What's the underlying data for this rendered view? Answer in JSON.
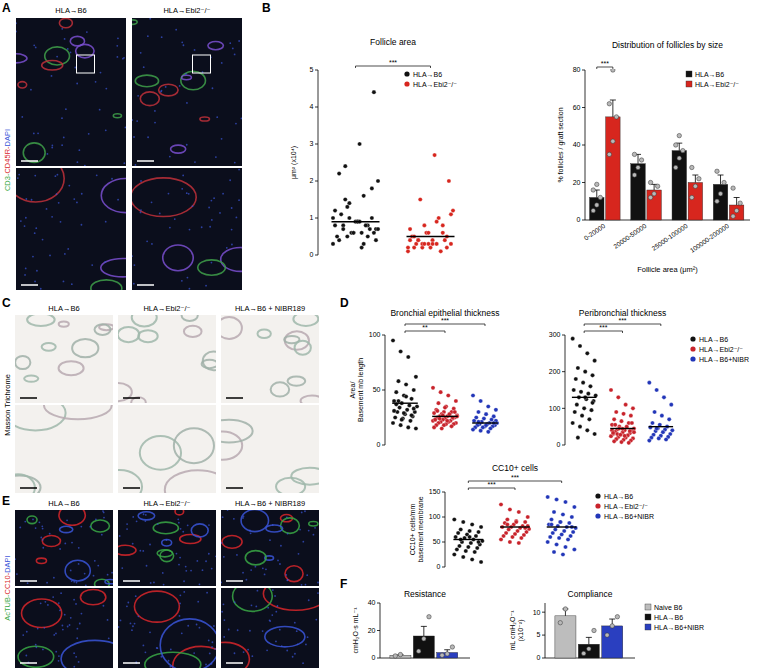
{
  "panel_labels": [
    "A",
    "B",
    "C",
    "D",
    "E",
    "F"
  ],
  "image_panels": [
    {
      "stain": [
        "CD3-",
        "CD45R-",
        "DAPI"
      ],
      "colors": [
        "#3aa845",
        "#d8262a",
        "#3a55d8"
      ],
      "columns": [
        "HLA→B6",
        "HLA→Ebi2⁻/⁻"
      ]
    },
    {
      "stain": [
        "Masson Trichrome"
      ],
      "colors": [
        "#000000"
      ],
      "columns": [
        "HLA→B6",
        "HLA→Ebi2⁻/⁻",
        "HLA→B6 + NIBR189"
      ]
    },
    {
      "stain": [
        "AcTUB-",
        "CC10-",
        "DAPI"
      ],
      "colors": [
        "#3aa845",
        "#d8262a",
        "#3a55d8"
      ],
      "columns": [
        "HLA→B6",
        "HLA→Ebi2⁻/⁻",
        "HLA→B6 + NIBR189"
      ]
    }
  ],
  "chart_data": [
    {
      "type": "strip",
      "title": "Follicle area",
      "ylabel": "μm² (x10⁴)",
      "ylim": [
        0,
        5
      ],
      "yticks": [
        0,
        1,
        2,
        3,
        4,
        5
      ],
      "legend": "top-right",
      "series": [
        {
          "name": "HLA→B6",
          "color": "#111111",
          "mean": 0.9,
          "values": [
            0.3,
            0.5,
            0.6,
            0.7,
            0.8,
            0.9,
            1.0,
            0.4,
            0.6,
            0.8,
            1.2,
            1.4,
            1.6,
            2.0,
            2.4,
            3.0,
            4.4,
            1.1,
            0.9,
            0.7,
            0.5,
            0.6,
            0.8,
            1.0,
            1.3,
            0.2,
            0.4,
            0.7,
            0.9,
            1.8,
            2.2,
            0.6,
            0.5,
            0.8,
            1.0,
            0.3,
            0.7,
            1.5,
            0.9,
            0.6
          ]
        },
        {
          "name": "HLA→Ebi2⁻/⁻",
          "color": "#d7261e",
          "mean": 0.5,
          "values": [
            0.1,
            0.2,
            0.3,
            0.3,
            0.4,
            0.4,
            0.5,
            0.2,
            0.3,
            0.6,
            0.7,
            0.8,
            1.0,
            1.2,
            1.5,
            2.7,
            2.0,
            0.3,
            0.2,
            0.4,
            0.5,
            0.6,
            0.1,
            0.2,
            0.3,
            0.9,
            1.1,
            0.4,
            0.3,
            0.2,
            0.5,
            0.6,
            0.8,
            0.4,
            0.3
          ]
        }
      ],
      "annotations": [
        {
          "text": "***",
          "from": 0,
          "to": 1
        }
      ]
    },
    {
      "type": "bar",
      "title": "Distribution of follicles by size",
      "ylabel": "% follicles / graft section",
      "xlabel": "Follicle area (μm²)",
      "categories": [
        "0-20000",
        "20000-50000",
        "25000-100000",
        "100000-200000"
      ],
      "ylim": [
        0,
        80
      ],
      "yticks": [
        0,
        20,
        40,
        60,
        80
      ],
      "legend": "top-right",
      "series": [
        {
          "name": "HLA→B6",
          "color": "#111111",
          "values": [
            12,
            30,
            37,
            19
          ],
          "errors": [
            4,
            5,
            4,
            5
          ],
          "points": [
            [
              5,
              8,
              12,
              16,
              19
            ],
            [
              24,
              28,
              32,
              35
            ],
            [
              28,
              33,
              37,
              40,
              45
            ],
            [
              10,
              14,
              20,
              26
            ]
          ]
        },
        {
          "name": "HLA→Ebi2⁻/⁻",
          "color": "#d7261e",
          "values": [
            55,
            16,
            20,
            8
          ],
          "errors": [
            9,
            3,
            4,
            4
          ],
          "points": [
            [
              35,
              42,
              55,
              62,
              80
            ],
            [
              12,
              14,
              18,
              20
            ],
            [
              12,
              18,
              22,
              28
            ],
            [
              2,
              5,
              9,
              17
            ]
          ]
        }
      ],
      "annotations": [
        {
          "text": "***",
          "category": 0
        }
      ]
    },
    {
      "type": "strip",
      "title": "Bronchial epithelial thickness",
      "ylabel": [
        "Area/",
        "Basement mb length"
      ],
      "ylim": [
        0,
        100
      ],
      "yticks": [
        0,
        50,
        100
      ],
      "series": [
        {
          "name": "HLA→B6",
          "color": "#111111",
          "mean": 38,
          "values": [
            95,
            85,
            80,
            62,
            58,
            55,
            50,
            48,
            45,
            42,
            40,
            38,
            36,
            35,
            34,
            32,
            30,
            30,
            28,
            26,
            25,
            24,
            22,
            20,
            18,
            16,
            15,
            40,
            44,
            33,
            37,
            29,
            27,
            31,
            23
          ]
        },
        {
          "name": "HLA→Ebi2⁻/⁻",
          "color": "#c8232b",
          "mean": 26,
          "values": [
            52,
            48,
            45,
            40,
            38,
            35,
            33,
            32,
            30,
            30,
            29,
            28,
            27,
            27,
            26,
            26,
            25,
            25,
            24,
            24,
            23,
            23,
            22,
            22,
            21,
            21,
            20,
            20,
            19,
            19,
            18,
            18,
            17,
            16,
            15,
            28,
            26,
            24,
            22,
            30,
            31,
            34,
            25,
            23,
            27
          ]
        },
        {
          "name": "HLA→B6+NIBR",
          "color": "#2236b8",
          "mean": 20,
          "values": [
            45,
            40,
            35,
            32,
            30,
            28,
            26,
            25,
            24,
            23,
            22,
            21,
            20,
            20,
            19,
            19,
            18,
            18,
            17,
            17,
            16,
            16,
            15,
            14,
            13,
            12,
            22,
            21,
            18,
            20
          ]
        }
      ],
      "annotations": [
        {
          "text": "**",
          "from": 0,
          "to": 1
        },
        {
          "text": "***",
          "from": 0,
          "to": 2
        }
      ]
    },
    {
      "type": "strip",
      "title": "Peribronchial thickness",
      "ylim": [
        0,
        300
      ],
      "yticks": [
        0,
        100,
        200,
        300
      ],
      "legend": "right",
      "series": [
        {
          "name": "HLA→B6",
          "color": "#111111",
          "mean": 130,
          "values": [
            290,
            270,
            250,
            230,
            210,
            200,
            190,
            180,
            170,
            160,
            150,
            145,
            140,
            135,
            130,
            125,
            120,
            110,
            100,
            95,
            90,
            80,
            70,
            60,
            50,
            40,
            30,
            20,
            130,
            115
          ]
        },
        {
          "name": "HLA→Ebi2⁻/⁻",
          "color": "#c8232b",
          "mean": 45,
          "values": [
            150,
            130,
            110,
            100,
            90,
            85,
            80,
            70,
            65,
            60,
            55,
            50,
            48,
            45,
            42,
            40,
            38,
            36,
            34,
            32,
            30,
            28,
            26,
            24,
            22,
            20,
            18,
            16,
            14,
            12,
            10,
            8,
            6,
            40,
            45,
            50,
            35,
            30,
            25,
            60,
            55,
            44,
            38,
            33,
            28
          ]
        },
        {
          "name": "HLA→B6+NIBR",
          "color": "#2236b8",
          "mean": 50,
          "values": [
            170,
            150,
            130,
            110,
            90,
            80,
            70,
            60,
            55,
            50,
            48,
            45,
            42,
            40,
            38,
            35,
            30,
            28,
            25,
            22,
            20,
            18,
            15,
            12,
            45
          ]
        }
      ],
      "annotations": [
        {
          "text": "***",
          "from": 0,
          "to": 1
        },
        {
          "text": "***",
          "from": 0,
          "to": 2
        }
      ]
    },
    {
      "type": "strip",
      "title": "CC10+ cells",
      "ylabel": [
        "CC10+ cells/mm",
        "basement membrane"
      ],
      "ylim": [
        0,
        150
      ],
      "yticks": [
        0,
        50,
        100,
        150
      ],
      "legend": "right",
      "series": [
        {
          "name": "HLA→B6",
          "color": "#111111",
          "mean": 55,
          "values": [
            95,
            90,
            85,
            80,
            75,
            72,
            70,
            68,
            65,
            62,
            60,
            58,
            55,
            52,
            50,
            48,
            45,
            42,
            40,
            38,
            35,
            32,
            30,
            25,
            20,
            15,
            10,
            55,
            60,
            50
          ]
        },
        {
          "name": "HLA→Ebi2⁻/⁻",
          "color": "#c8232b",
          "mean": 80,
          "values": [
            125,
            115,
            110,
            100,
            95,
            92,
            90,
            88,
            85,
            82,
            80,
            80,
            78,
            76,
            75,
            72,
            70,
            68,
            66,
            64,
            62,
            60,
            58,
            55,
            50,
            48,
            82,
            85,
            90,
            78
          ]
        },
        {
          "name": "HLA→B6+NIBR",
          "color": "#2236b8",
          "mean": 80,
          "values": [
            140,
            135,
            130,
            120,
            110,
            105,
            100,
            95,
            90,
            88,
            85,
            82,
            80,
            78,
            75,
            72,
            70,
            68,
            65,
            62,
            60,
            58,
            55,
            50,
            45,
            40,
            35,
            30,
            25,
            80,
            85,
            90
          ]
        }
      ],
      "annotations": [
        {
          "text": "***",
          "from": 0,
          "to": 1
        },
        {
          "text": "***",
          "from": 0,
          "to": 2
        }
      ]
    },
    {
      "type": "bar",
      "title": "Resistance",
      "ylabel": "cmH₂O·s mL⁻¹",
      "categories": [
        null
      ],
      "ylim": [
        0,
        40
      ],
      "yticks": [
        0,
        20,
        40
      ],
      "series": [
        {
          "name": "Naive B6",
          "color": "#bdbdbd",
          "values": [
            2
          ],
          "errors": [
            0.5
          ],
          "points": [
            [
              1.5,
              2.5
            ]
          ]
        },
        {
          "name": "HLA→B6",
          "color": "#111111",
          "values": [
            16
          ],
          "errors": [
            7
          ],
          "points": [
            [
              5,
              14,
              30
            ]
          ]
        },
        {
          "name": "HLA→B6+NIBR",
          "color": "#2a3fc0",
          "values": [
            4
          ],
          "errors": [
            2
          ],
          "points": [
            [
              2,
              3,
              8
            ]
          ]
        }
      ]
    },
    {
      "type": "bar",
      "title": "Compliance",
      "ylabel": [
        "mL cmH₂O⁻¹",
        "(x10⁻²)"
      ],
      "categories": [
        null
      ],
      "ylim": [
        0,
        12
      ],
      "yticks": [
        0,
        5,
        10
      ],
      "legend": "right",
      "series": [
        {
          "name": "Naive B6",
          "color": "#bdbdbd",
          "values": [
            9.2
          ],
          "errors": [
            1.5
          ],
          "points": [
            [
              7.7,
              10.7
            ]
          ]
        },
        {
          "name": "HLA→B6",
          "color": "#111111",
          "values": [
            3
          ],
          "errors": [
            1.5
          ],
          "points": [
            [
              1,
              2,
              6
            ]
          ]
        },
        {
          "name": "HLA→B6+NIBR",
          "color": "#2a3fc0",
          "values": [
            7
          ],
          "errors": [
            1.5
          ],
          "points": [
            [
              5,
              7,
              9
            ]
          ]
        }
      ]
    }
  ]
}
